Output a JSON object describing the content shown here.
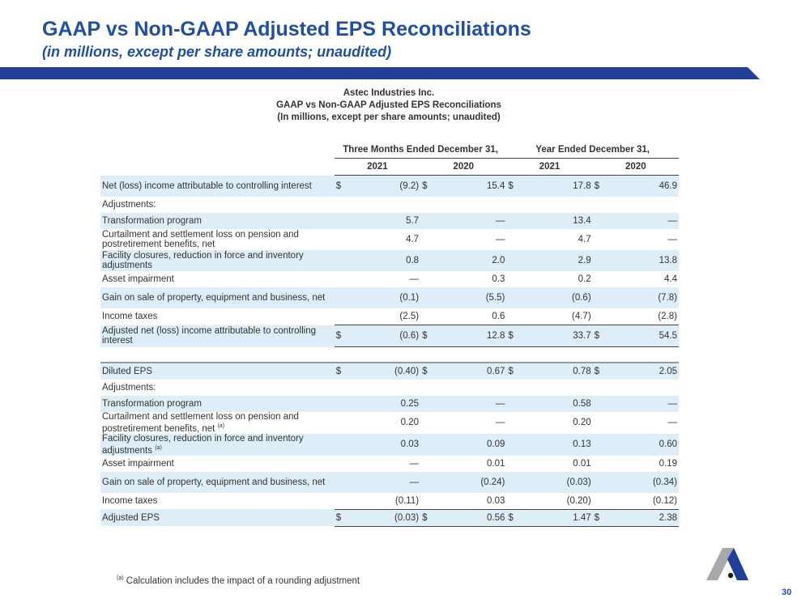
{
  "slide": {
    "title": "GAAP vs Non-GAAP Adjusted EPS Reconciliations",
    "subtitle": "(in millions, except per share amounts; unaudited)",
    "page_number": "30"
  },
  "report": {
    "company": "Astec Industries Inc.",
    "title": "GAAP vs Non-GAAP Adjusted EPS Reconciliations",
    "subtitle": "(In millions, except per share amounts; unaudited)"
  },
  "table": {
    "group_headers": [
      "Three Months Ended December 31,",
      "Year Ended December 31,"
    ],
    "year_headers": [
      "2021",
      "2020",
      "2021",
      "2020"
    ],
    "section1": [
      {
        "label": "Net (loss) income attributable to controlling interest",
        "currency": [
          "$",
          "$",
          "$",
          "$"
        ],
        "values": [
          "(9.2)",
          "15.4",
          "17.8",
          "46.9"
        ]
      },
      {
        "label": "Adjustments:"
      },
      {
        "label": "Transformation program",
        "values": [
          "5.7",
          "—",
          "13.4",
          "—"
        ]
      },
      {
        "label": "Curtailment and settlement loss on pension and postretirement benefits, net",
        "values": [
          "4.7",
          "—",
          "4.7",
          "—"
        ]
      },
      {
        "label": "Facility closures, reduction in force and inventory adjustments",
        "values": [
          "0.8",
          "2.0",
          "2.9",
          "13.8"
        ]
      },
      {
        "label": "Asset impairment",
        "values": [
          "—",
          "0.3",
          "0.2",
          "4.4"
        ]
      },
      {
        "label": "Gain on sale of property, equipment and business, net",
        "values": [
          "(0.1)",
          "(5.5)",
          "(0.6)",
          "(7.8)"
        ]
      },
      {
        "label": "Income taxes",
        "values": [
          "(2.5)",
          "0.6",
          "(4.7)",
          "(2.8)"
        ]
      },
      {
        "label": "Adjusted net (loss) income attributable to controlling interest",
        "currency": [
          "$",
          "$",
          "$",
          "$"
        ],
        "values": [
          "(0.6)",
          "12.8",
          "33.7",
          "54.5"
        ]
      }
    ],
    "section2": [
      {
        "label": "Diluted EPS",
        "currency": [
          "$",
          "$",
          "$",
          "$"
        ],
        "values": [
          "(0.40)",
          "0.67",
          "0.78",
          "2.05"
        ]
      },
      {
        "label": "Adjustments:"
      },
      {
        "label": "Transformation program",
        "values": [
          "0.25",
          "—",
          "0.58",
          "—"
        ]
      },
      {
        "label": "Curtailment and settlement loss on pension and postretirement benefits, net",
        "footnote": "(a)",
        "values": [
          "0.20",
          "—",
          "0.20",
          "—"
        ]
      },
      {
        "label": "Facility closures, reduction in force and inventory adjustments",
        "footnote": "(a)",
        "values": [
          "0.03",
          "0.09",
          "0.13",
          "0.60"
        ]
      },
      {
        "label": "Asset impairment",
        "values": [
          "—",
          "0.01",
          "0.01",
          "0.19"
        ]
      },
      {
        "label": "Gain on sale of property, equipment and business, net",
        "values": [
          "—",
          "(0.24)",
          "(0.03)",
          "(0.34)"
        ]
      },
      {
        "label": "Income taxes",
        "values": [
          "(0.11)",
          "0.03",
          "(0.20)",
          "(0.12)"
        ]
      },
      {
        "label": "Adjusted EPS",
        "currency": [
          "$",
          "$",
          "$",
          "$"
        ],
        "values": [
          "(0.03)",
          "0.56",
          "1.47",
          "2.38"
        ]
      }
    ]
  },
  "footnote": {
    "marker": "(a)",
    "text": "Calculation includes the impact of a rounding adjustment"
  },
  "colors": {
    "title": "#1f4ea3",
    "band": "#1f3f99",
    "row_shade": "#ddeef8",
    "logo_gray": "#a6a8ab",
    "logo_blue": "#1f3f99"
  },
  "logo": {
    "icon": "astec-a-logo"
  }
}
